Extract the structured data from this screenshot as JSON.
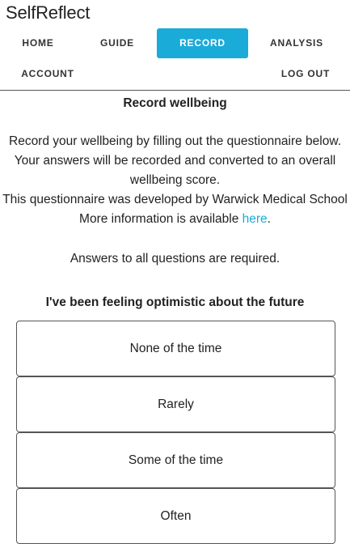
{
  "app": {
    "title": "SelfReflect"
  },
  "nav": {
    "home": "HOME",
    "guide": "GUIDE",
    "record": "RECORD",
    "analysis": "ANALYSIS",
    "account": "ACCOUNT",
    "logout": "LOG OUT",
    "active": "record",
    "accent_color": "#1aabd9"
  },
  "page": {
    "heading": "Record wellbeing",
    "intro_line1": "Record your wellbeing by filling out the questionnaire below.",
    "intro_line2": "Your answers will be recorded and converted to an overall",
    "intro_line3": "wellbeing score.",
    "intro_line4": "This questionnaire was developed by Warwick Medical School",
    "more_info_prefix": "More information is available ",
    "more_info_link": "here",
    "more_info_suffix": ".",
    "required_note": "Answers to all questions are required."
  },
  "question": {
    "text": "I've been feeling optimistic about the future",
    "options": [
      "None of the time",
      "Rarely",
      "Some of the time",
      "Often"
    ]
  }
}
